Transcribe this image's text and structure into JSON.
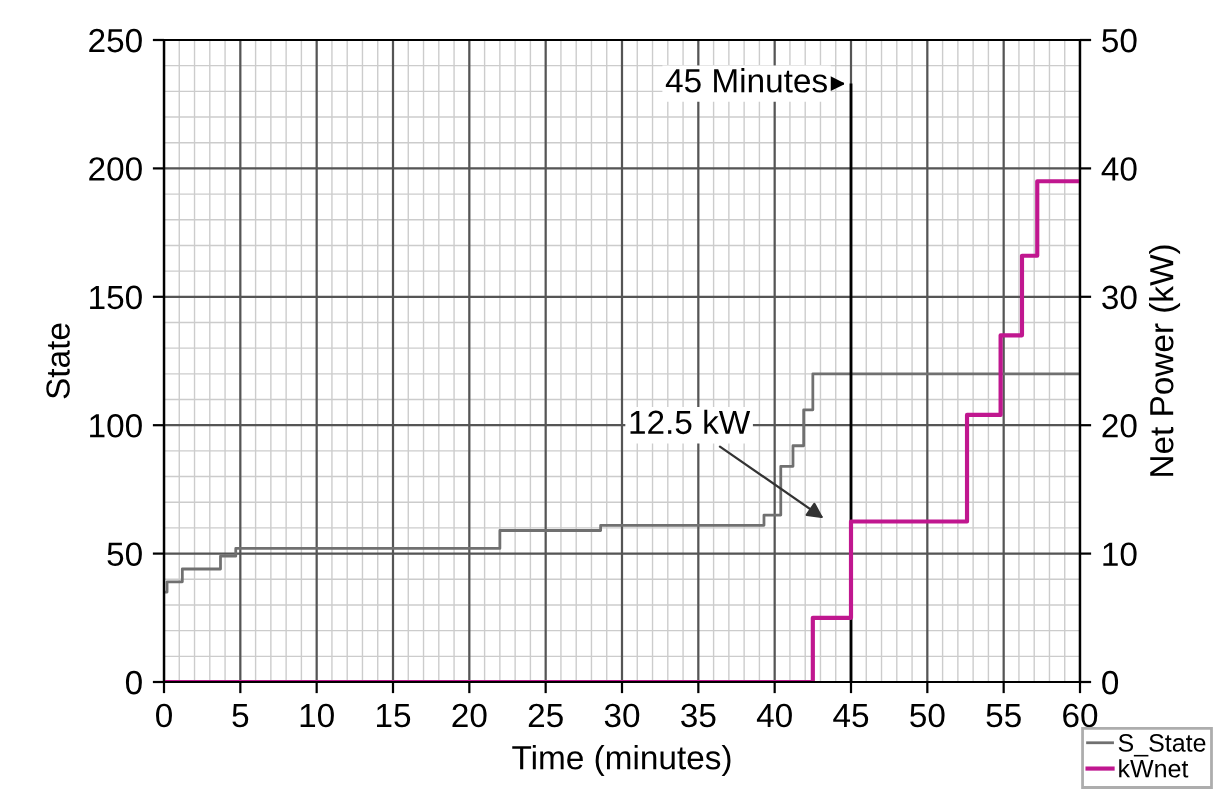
{
  "chart_data": {
    "type": "step",
    "xlabel": "Time (minutes)",
    "ylabel": "State",
    "y2label": "Net Power (kW)",
    "xlim": [
      0,
      60
    ],
    "xticks": [
      0,
      5,
      10,
      15,
      20,
      25,
      30,
      35,
      40,
      45,
      50,
      55,
      60
    ],
    "ylim": [
      0,
      250
    ],
    "yticks": [
      0,
      50,
      100,
      150,
      200,
      250
    ],
    "y2lim": [
      0,
      50
    ],
    "y2ticks": [
      0,
      10,
      20,
      30,
      40,
      50
    ],
    "grid": true,
    "legend": "bottom right",
    "line_style": "solid",
    "marker": "none",
    "series": [
      {
        "name": "S_State",
        "color": "#707070",
        "x": [
          0,
          0.2,
          1.2,
          3.7,
          4.7,
          22,
          28.6,
          39.3,
          40.4,
          41.2,
          41.9,
          42.5,
          60
        ],
        "values": [
          35,
          39,
          44,
          49,
          52,
          59,
          61,
          65,
          84,
          92,
          106,
          120,
          120
        ]
      },
      {
        "name": "kWnet",
        "color": "#c0178f",
        "axis": "y2",
        "x": [
          0,
          42.5,
          45,
          52.6,
          54.8,
          56.2,
          57.2,
          60
        ],
        "values": [
          0,
          5,
          12.5,
          20.8,
          27,
          33.2,
          39,
          39
        ]
      }
    ],
    "ref_lines": [
      {
        "axis": "x",
        "value": 45,
        "label": "45 Minutes",
        "color": "#000000"
      }
    ],
    "annotations": [
      "12.5 kW"
    ]
  }
}
